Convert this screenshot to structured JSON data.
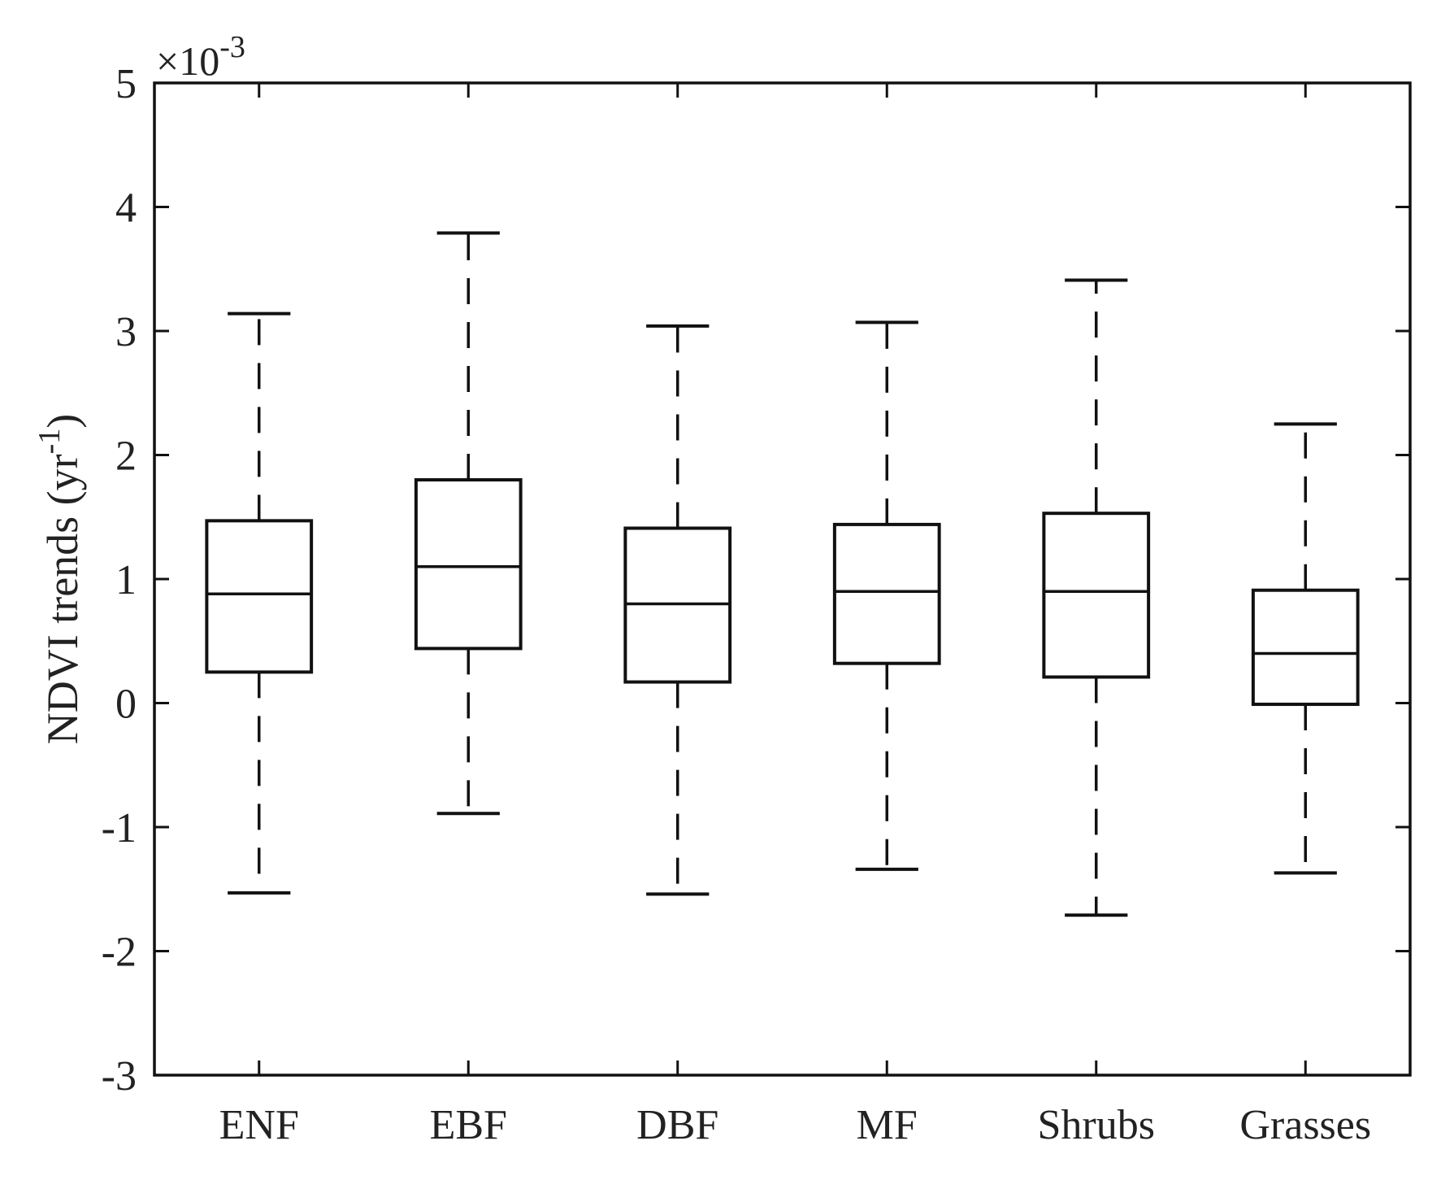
{
  "chart_data": {
    "type": "boxplot",
    "categories": [
      "ENF",
      "EBF",
      "DBF",
      "MF",
      "Shrubs",
      "Grasses"
    ],
    "series": [
      {
        "whisker_low": -1.53,
        "q1": 0.25,
        "median": 0.88,
        "q3": 1.47,
        "whisker_high": 3.14
      },
      {
        "whisker_low": -0.89,
        "q1": 0.44,
        "median": 1.1,
        "q3": 1.8,
        "whisker_high": 3.79
      },
      {
        "whisker_low": -1.54,
        "q1": 0.17,
        "median": 0.8,
        "q3": 1.41,
        "whisker_high": 3.04
      },
      {
        "whisker_low": -1.34,
        "q1": 0.32,
        "median": 0.9,
        "q3": 1.44,
        "whisker_high": 3.07
      },
      {
        "whisker_low": -1.71,
        "q1": 0.21,
        "median": 0.9,
        "q3": 1.53,
        "whisker_high": 3.41
      },
      {
        "whisker_low": -1.37,
        "q1": -0.01,
        "median": 0.4,
        "q3": 0.91,
        "whisker_high": 2.25
      }
    ],
    "ylabel_main": "NDVI trends (yr",
    "ylabel_sup": "-1",
    "ylabel_close": ")",
    "ylim": [
      -3,
      5
    ],
    "yticks": [
      "-3",
      "-2",
      "-1",
      "0",
      "1",
      "2",
      "3",
      "4",
      "5"
    ],
    "y_exponent_prefix": "×10",
    "y_exponent": "-3",
    "grid": false,
    "line_color": "#111111"
  }
}
